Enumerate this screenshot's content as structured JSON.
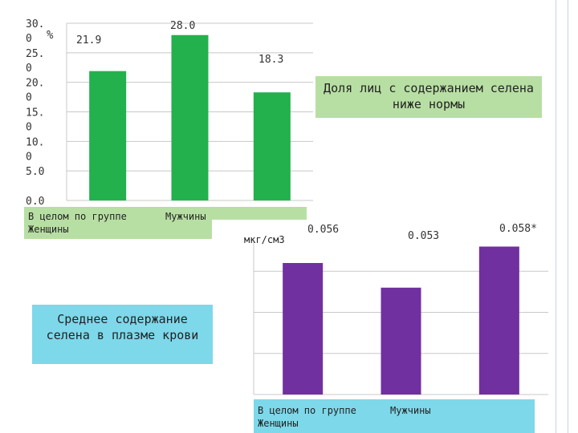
{
  "chart_data": [
    {
      "type": "bar",
      "ylabel": "%",
      "ylim": [
        0,
        30
      ],
      "ytick_labels": [
        "0.0",
        "5.0",
        "10.\n0",
        "15.\n0",
        "20.\n0",
        "25.\n0",
        "30.\n0"
      ],
      "yticks": [
        0,
        5,
        10,
        15,
        20,
        25,
        30
      ],
      "categories": [
        "В целом по группе",
        "Мужчины",
        "Женщины"
      ],
      "values": [
        21.9,
        28.0,
        18.3
      ],
      "data_labels": [
        "21.9",
        "28.0",
        "18.3"
      ],
      "color": "#22b14c",
      "grid": true,
      "annotation": "Доля лиц с содержанием селена ниже нормы"
    },
    {
      "type": "bar",
      "ylabel": "мкг/см3",
      "categories": [
        "В целом по группе",
        "Мужчины",
        "Женщины"
      ],
      "values": [
        0.056,
        0.053,
        0.058
      ],
      "data_labels": [
        "0.056",
        "0.053",
        "0.058*"
      ],
      "color": "#7030a0",
      "grid": true,
      "annotation": "Среднее содержание селена в плазме крови"
    }
  ]
}
